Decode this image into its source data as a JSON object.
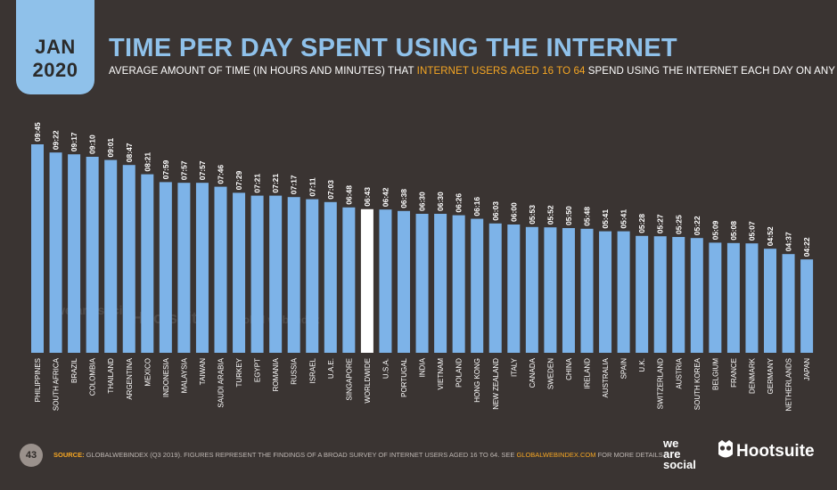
{
  "badge": {
    "month": "JAN",
    "year": "2020"
  },
  "header": {
    "title": "TIME PER DAY SPENT USING THE INTERNET",
    "subtitle_pre": "AVERAGE AMOUNT OF TIME (IN HOURS AND MINUTES) THAT ",
    "subtitle_highlight": "INTERNET USERS AGED 16 TO 64",
    "subtitle_post": " SPEND USING THE INTERNET EACH DAY ON ANY DEVICE"
  },
  "colors": {
    "bar": "#7db3e8",
    "highlight_bar": "#ffffff",
    "accent": "#f5a623",
    "badge": "#8fc1ea",
    "background": "#3a3432"
  },
  "watermarks": {
    "wearesocial": "we are social",
    "hootsuite": "Hootsuite",
    "gwi": "global web index"
  },
  "chart_data": {
    "type": "bar",
    "unit": "hours:minutes",
    "ylim": [
      0,
      10
    ],
    "highlight_category": "WORLDWIDE",
    "categories": [
      "PHILIPPINES",
      "SOUTH AFRICA",
      "BRAZIL",
      "COLOMBIA",
      "THAILAND",
      "ARGENTINA",
      "MEXICO",
      "INDONESIA",
      "MALAYSIA",
      "TAIWAN",
      "SAUDI ARABIA",
      "TURKEY",
      "EGYPT",
      "ROMANIA",
      "RUSSIA",
      "ISRAEL",
      "U.A.E.",
      "SINGAPORE",
      "WORLDWIDE",
      "U.S.A.",
      "PORTUGAL",
      "INDIA",
      "VIETNAM",
      "POLAND",
      "HONG KONG",
      "NEW ZEALAND",
      "ITALY",
      "CANADA",
      "SWEDEN",
      "CHINA",
      "IRELAND",
      "AUSTRALIA",
      "SPAIN",
      "U.K.",
      "SWITZERLAND",
      "AUSTRIA",
      "SOUTH KOREA",
      "BELGIUM",
      "FRANCE",
      "DENMARK",
      "GERMANY",
      "NETHERLANDS",
      "JAPAN"
    ],
    "labels": [
      "09:45",
      "09:22",
      "09:17",
      "09:10",
      "09:01",
      "08:47",
      "08:21",
      "07:59",
      "07:57",
      "07:57",
      "07:46",
      "07:29",
      "07:21",
      "07:21",
      "07:17",
      "07:11",
      "07:03",
      "06:48",
      "06:43",
      "06:42",
      "06:38",
      "06:30",
      "06:30",
      "06:26",
      "06:16",
      "06:03",
      "06:00",
      "05:53",
      "05:52",
      "05:50",
      "05:48",
      "05:41",
      "05:41",
      "05:28",
      "05:27",
      "05:25",
      "05:22",
      "05:09",
      "05:08",
      "05:07",
      "04:52",
      "04:37",
      "04:22"
    ],
    "values": [
      9.75,
      9.367,
      9.283,
      9.167,
      9.017,
      8.783,
      8.35,
      7.983,
      7.95,
      7.95,
      7.767,
      7.483,
      7.35,
      7.35,
      7.283,
      7.183,
      7.05,
      6.8,
      6.717,
      6.7,
      6.633,
      6.5,
      6.5,
      6.433,
      6.267,
      6.05,
      6.0,
      5.883,
      5.867,
      5.833,
      5.8,
      5.683,
      5.683,
      5.467,
      5.45,
      5.417,
      5.367,
      5.15,
      5.133,
      5.117,
      4.867,
      4.617,
      4.367
    ]
  },
  "footer": {
    "page": "43",
    "source_label": "SOURCE:",
    "source_text": " GLOBALWEBINDEX (Q3 2019). FIGURES REPRESENT THE FINDINGS OF A BROAD SURVEY OF INTERNET USERS AGED 16 TO 64. SEE ",
    "source_link": "GLOBALWEBINDEX.COM",
    "source_end": " FOR MORE DETAILS."
  },
  "logos": {
    "was_line1": "we",
    "was_line2": "are",
    "was_line3": "social",
    "hootsuite": "Hootsuite"
  }
}
